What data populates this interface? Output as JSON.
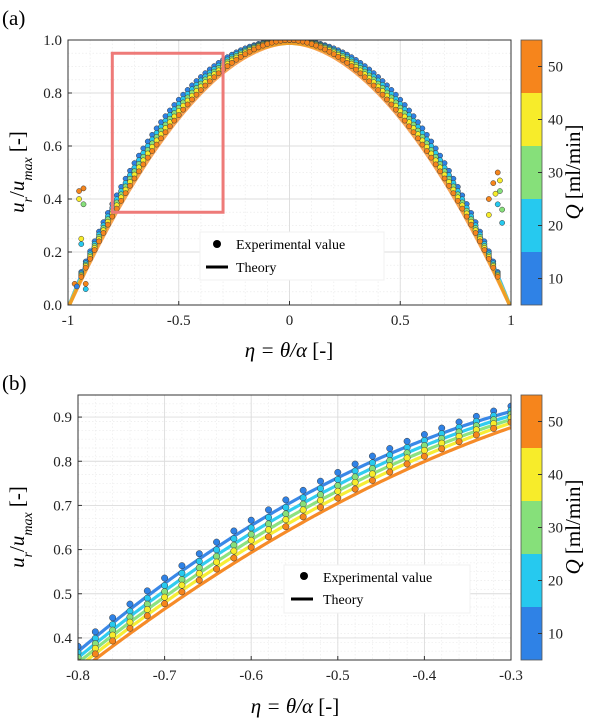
{
  "colors": {
    "Q10": "#2f82e6",
    "Q20": "#26c9ef",
    "Q30": "#86e07a",
    "Q40": "#f7ec2a",
    "Q50": "#f6851c",
    "zoom_box": "#ee7a78",
    "grid": "#dcdcdc",
    "minor_grid": "#ececec"
  },
  "chart_data": [
    {
      "panel_label": "(a)",
      "type": "scatter",
      "xlabel": "η = θ/α [-]",
      "ylabel": "u_r/u_max [-]",
      "xlim": [
        -1,
        1
      ],
      "ylim": [
        0,
        1
      ],
      "xticks": [
        "-1",
        "-0.5",
        "0",
        "0.5",
        "1"
      ],
      "yticks": [
        "0.0",
        "0.2",
        "0.4",
        "0.6",
        "0.8",
        "1.0"
      ],
      "grid": true,
      "legend": {
        "placement": "bottom-center",
        "entries": [
          "Experimental value",
          "Theory"
        ]
      },
      "colorbar": {
        "label": "Q [ml/min]",
        "ticks": [
          "10",
          "20",
          "30",
          "40",
          "50"
        ],
        "range": [
          5,
          55
        ]
      },
      "zoom_box": {
        "x": [
          -0.8,
          -0.3
        ],
        "y": [
          0.35,
          0.95
        ]
      },
      "series": [
        {
          "Q": 10,
          "color_key": "Q10",
          "shape_exponent": 2.15,
          "points": "η from -0.98 to 0.98, step 0.02"
        },
        {
          "Q": 20,
          "color_key": "Q20",
          "shape_exponent": 2.05
        },
        {
          "Q": 30,
          "color_key": "Q30",
          "shape_exponent": 1.97
        },
        {
          "Q": 40,
          "color_key": "Q40",
          "shape_exponent": 1.9
        },
        {
          "Q": 50,
          "color_key": "Q50",
          "shape_exponent": 1.82
        }
      ],
      "outliers": [
        {
          "x": -0.95,
          "y": 0.43,
          "Q": 50
        },
        {
          "x": -0.93,
          "y": 0.44,
          "Q": 50
        },
        {
          "x": -0.95,
          "y": 0.4,
          "Q": 40
        },
        {
          "x": -0.93,
          "y": 0.38,
          "Q": 30
        },
        {
          "x": -0.97,
          "y": 0.08,
          "Q": 50
        },
        {
          "x": -0.96,
          "y": 0.07,
          "Q": 10
        },
        {
          "x": -0.92,
          "y": 0.08,
          "Q": 50
        },
        {
          "x": -0.92,
          "y": 0.06,
          "Q": 20
        },
        {
          "x": -0.94,
          "y": 0.23,
          "Q": 20
        },
        {
          "x": -0.94,
          "y": 0.25,
          "Q": 40
        },
        {
          "x": 0.92,
          "y": 0.46,
          "Q": 50
        },
        {
          "x": 0.93,
          "y": 0.42,
          "Q": 40
        },
        {
          "x": 0.94,
          "y": 0.5,
          "Q": 50
        },
        {
          "x": 0.95,
          "y": 0.47,
          "Q": 40
        },
        {
          "x": 0.95,
          "y": 0.43,
          "Q": 30
        },
        {
          "x": 0.94,
          "y": 0.38,
          "Q": 20
        },
        {
          "x": 0.9,
          "y": 0.34,
          "Q": 40
        },
        {
          "x": 0.9,
          "y": 0.4,
          "Q": 50
        },
        {
          "x": 0.96,
          "y": 0.36,
          "Q": 30
        },
        {
          "x": 0.96,
          "y": 0.31,
          "Q": 20
        }
      ]
    },
    {
      "panel_label": "(b)",
      "type": "scatter",
      "xlabel": "η = θ/α [-]",
      "ylabel": "u_r/u_max [-]",
      "xlim": [
        -0.8,
        -0.3
      ],
      "ylim": [
        0.35,
        0.95
      ],
      "xticks": [
        "-0.8",
        "-0.7",
        "-0.6",
        "-0.5",
        "-0.4",
        "-0.3"
      ],
      "yticks": [
        "0.4",
        "0.5",
        "0.6",
        "0.7",
        "0.8",
        "0.9"
      ],
      "grid": true,
      "legend": {
        "placement": "bottom-right",
        "entries": [
          "Experimental value",
          "Theory"
        ]
      },
      "colorbar": {
        "label": "Q [ml/min]",
        "ticks": [
          "10",
          "20",
          "30",
          "40",
          "50"
        ],
        "range": [
          5,
          55
        ]
      },
      "series": [
        {
          "Q": 10,
          "color_key": "Q10",
          "shape_exponent": 2.15,
          "points": "η from -0.80 to -0.30, step 0.02"
        },
        {
          "Q": 20,
          "color_key": "Q20",
          "shape_exponent": 2.05
        },
        {
          "Q": 30,
          "color_key": "Q30",
          "shape_exponent": 1.97
        },
        {
          "Q": 40,
          "color_key": "Q40",
          "shape_exponent": 1.9
        },
        {
          "Q": 50,
          "color_key": "Q50",
          "shape_exponent": 1.82
        }
      ]
    }
  ]
}
